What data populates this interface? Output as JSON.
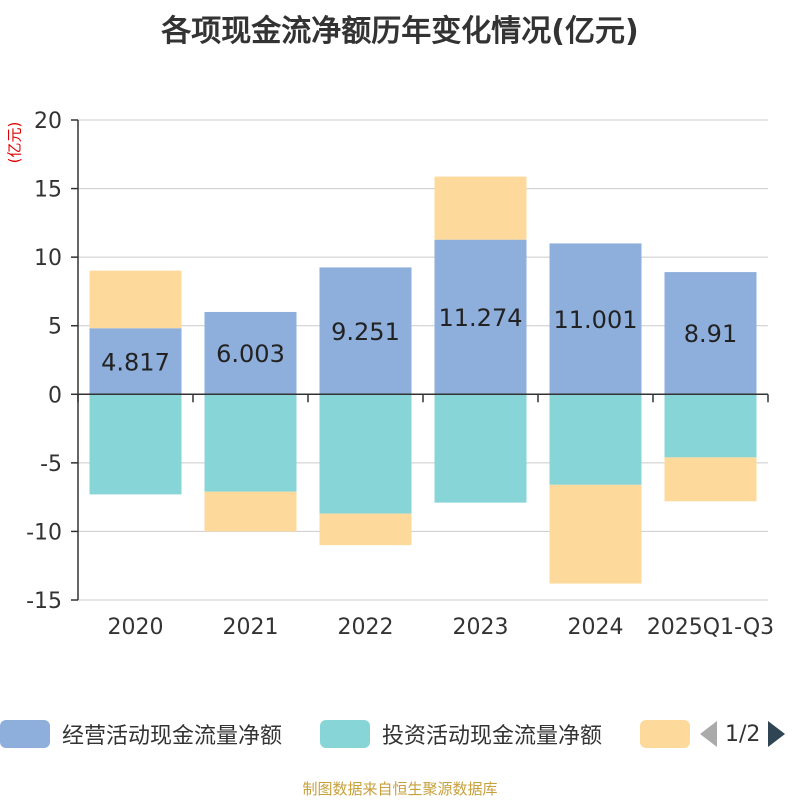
{
  "chart_data": {
    "type": "bar",
    "stacked": true,
    "title": "各项现金流净额历年变化情况(亿元)",
    "unit_label": "(亿元)",
    "categories": [
      "2020",
      "2021",
      "2022",
      "2023",
      "2024",
      "2025Q1-Q3"
    ],
    "ylim": [
      -15,
      20
    ],
    "yticks": [
      20,
      15,
      10,
      5,
      0,
      -5,
      -10,
      -15
    ],
    "grid": true,
    "series": [
      {
        "name": "经营活动现金流量净额",
        "color": "#8eaedb",
        "values": [
          4.817,
          6.003,
          9.251,
          11.274,
          11.001,
          8.91
        ],
        "labels": [
          "4.817",
          "6.003",
          "9.251",
          "11.274",
          "11.001",
          "8.91"
        ]
      },
      {
        "name": "投资活动现金流量净额",
        "color": "#87d5d7",
        "values": [
          -7.3,
          -7.1,
          -8.7,
          -7.9,
          -6.6,
          -4.6
        ]
      },
      {
        "name": "",
        "color": "#fdd99b",
        "values": [
          4.2,
          -2.9,
          -2.3,
          4.6,
          -7.2,
          -3.2
        ]
      }
    ]
  },
  "legend": {
    "items": [
      {
        "label": "经营活动现金流量净额",
        "color": "#8eaedb"
      },
      {
        "label": "投资活动现金流量净额",
        "color": "#87d5d7"
      },
      {
        "label": "",
        "color": "#fdd99b"
      }
    ],
    "page": "1/2"
  },
  "source": "制图数据来自恒生聚源数据库"
}
